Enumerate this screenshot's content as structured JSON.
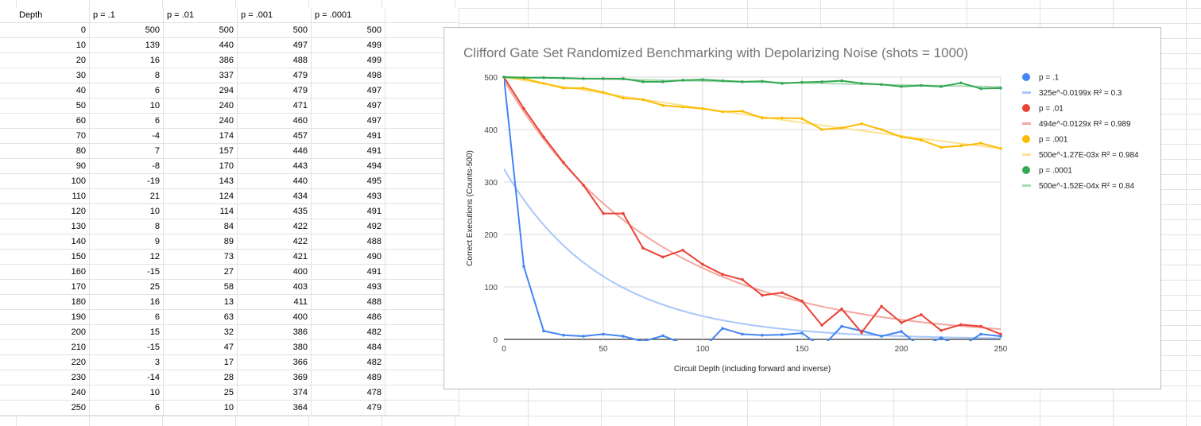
{
  "sheet": {
    "headers": [
      "Depth",
      "p = .1",
      "p = .01",
      "p = .001",
      "p = .0001"
    ],
    "rows": [
      [
        0,
        500,
        500,
        500,
        500
      ],
      [
        10,
        139,
        440,
        497,
        499
      ],
      [
        20,
        16,
        386,
        488,
        499
      ],
      [
        30,
        8,
        337,
        479,
        498
      ],
      [
        40,
        6,
        294,
        479,
        497
      ],
      [
        50,
        10,
        240,
        471,
        497
      ],
      [
        60,
        6,
        240,
        460,
        497
      ],
      [
        70,
        -4,
        174,
        457,
        491
      ],
      [
        80,
        7,
        157,
        446,
        491
      ],
      [
        90,
        -8,
        170,
        443,
        494
      ],
      [
        100,
        -19,
        143,
        440,
        495
      ],
      [
        110,
        21,
        124,
        434,
        493
      ],
      [
        120,
        10,
        114,
        435,
        491
      ],
      [
        130,
        8,
        84,
        422,
        492
      ],
      [
        140,
        9,
        89,
        422,
        488
      ],
      [
        150,
        12,
        73,
        421,
        490
      ],
      [
        160,
        -15,
        27,
        400,
        491
      ],
      [
        170,
        25,
        58,
        403,
        493
      ],
      [
        180,
        16,
        13,
        411,
        488
      ],
      [
        190,
        6,
        63,
        400,
        486
      ],
      [
        200,
        15,
        32,
        386,
        482
      ],
      [
        210,
        -15,
        47,
        380,
        484
      ],
      [
        220,
        3,
        17,
        366,
        482
      ],
      [
        230,
        -14,
        28,
        369,
        489
      ],
      [
        240,
        10,
        25,
        374,
        478
      ],
      [
        250,
        6,
        10,
        364,
        479
      ]
    ]
  },
  "chart_data": {
    "type": "line",
    "title": "Clifford Gate Set Randomized Benchmarking with Depolarizing Noise (shots = 1000)",
    "xlabel": "Circuit Depth (including forward and inverse)",
    "ylabel": "Correct Executions (Counts-500)",
    "xlim": [
      0,
      250
    ],
    "ylim": [
      0,
      500
    ],
    "xticks": [
      0,
      50,
      100,
      150,
      200,
      250
    ],
    "yticks": [
      0,
      100,
      200,
      300,
      400,
      500
    ],
    "grid": true,
    "legend_position": "right",
    "x": [
      0,
      10,
      20,
      30,
      40,
      50,
      60,
      70,
      80,
      90,
      100,
      110,
      120,
      130,
      140,
      150,
      160,
      170,
      180,
      190,
      200,
      210,
      220,
      230,
      240,
      250
    ],
    "series": [
      {
        "name": "p = .1",
        "color": "#4285f4",
        "values": [
          500,
          139,
          16,
          8,
          6,
          10,
          6,
          -4,
          7,
          -8,
          -19,
          21,
          10,
          8,
          9,
          12,
          -15,
          25,
          16,
          6,
          15,
          -15,
          3,
          -14,
          10,
          6
        ]
      },
      {
        "name": "p = .01",
        "color": "#ea4335",
        "values": [
          500,
          440,
          386,
          337,
          294,
          240,
          240,
          174,
          157,
          170,
          143,
          124,
          114,
          84,
          89,
          73,
          27,
          58,
          13,
          63,
          32,
          47,
          17,
          28,
          25,
          10
        ]
      },
      {
        "name": "p = .001",
        "color": "#fbbc04",
        "values": [
          500,
          497,
          488,
          479,
          479,
          471,
          460,
          457,
          446,
          443,
          440,
          434,
          435,
          422,
          422,
          421,
          400,
          403,
          411,
          400,
          386,
          380,
          366,
          369,
          374,
          364
        ]
      },
      {
        "name": "p = .0001",
        "color": "#34a853",
        "values": [
          500,
          499,
          499,
          498,
          497,
          497,
          497,
          491,
          491,
          494,
          495,
          493,
          491,
          492,
          488,
          490,
          491,
          493,
          488,
          486,
          482,
          484,
          482,
          489,
          478,
          479
        ]
      }
    ],
    "trendlines": [
      {
        "label": "325e^-0.0199x R² = 0.3",
        "color": "#a8c7fa",
        "a": 325,
        "b": 0.0199
      },
      {
        "label": "494e^-0.0129x R² = 0.989",
        "color": "#f4a7a0",
        "a": 494,
        "b": 0.0129
      },
      {
        "label": "500e^-1.27E-03x R² = 0.984",
        "color": "#fde293",
        "a": 500,
        "b": 0.00127
      },
      {
        "label": "500e^-1.52E-04x R² = 0.84",
        "color": "#a8dab5",
        "a": 500,
        "b": 0.000152
      }
    ],
    "legend": [
      {
        "label": "p = .1",
        "color": "#4285f4",
        "kind": "dot"
      },
      {
        "label": "325e^-0.0199x R² = 0.3",
        "color": "#a8c7fa",
        "kind": "line"
      },
      {
        "label": "p = .01",
        "color": "#ea4335",
        "kind": "dot"
      },
      {
        "label": "494e^-0.0129x R² = 0.989",
        "color": "#f4a7a0",
        "kind": "line"
      },
      {
        "label": "p = .001",
        "color": "#fbbc04",
        "kind": "dot"
      },
      {
        "label": "500e^-1.27E-03x R² = 0.984",
        "color": "#fde293",
        "kind": "line"
      },
      {
        "label": "p = .0001",
        "color": "#34a853",
        "kind": "dot"
      },
      {
        "label": "500e^-1.52E-04x R² = 0.84",
        "color": "#a8dab5",
        "kind": "line"
      }
    ]
  }
}
